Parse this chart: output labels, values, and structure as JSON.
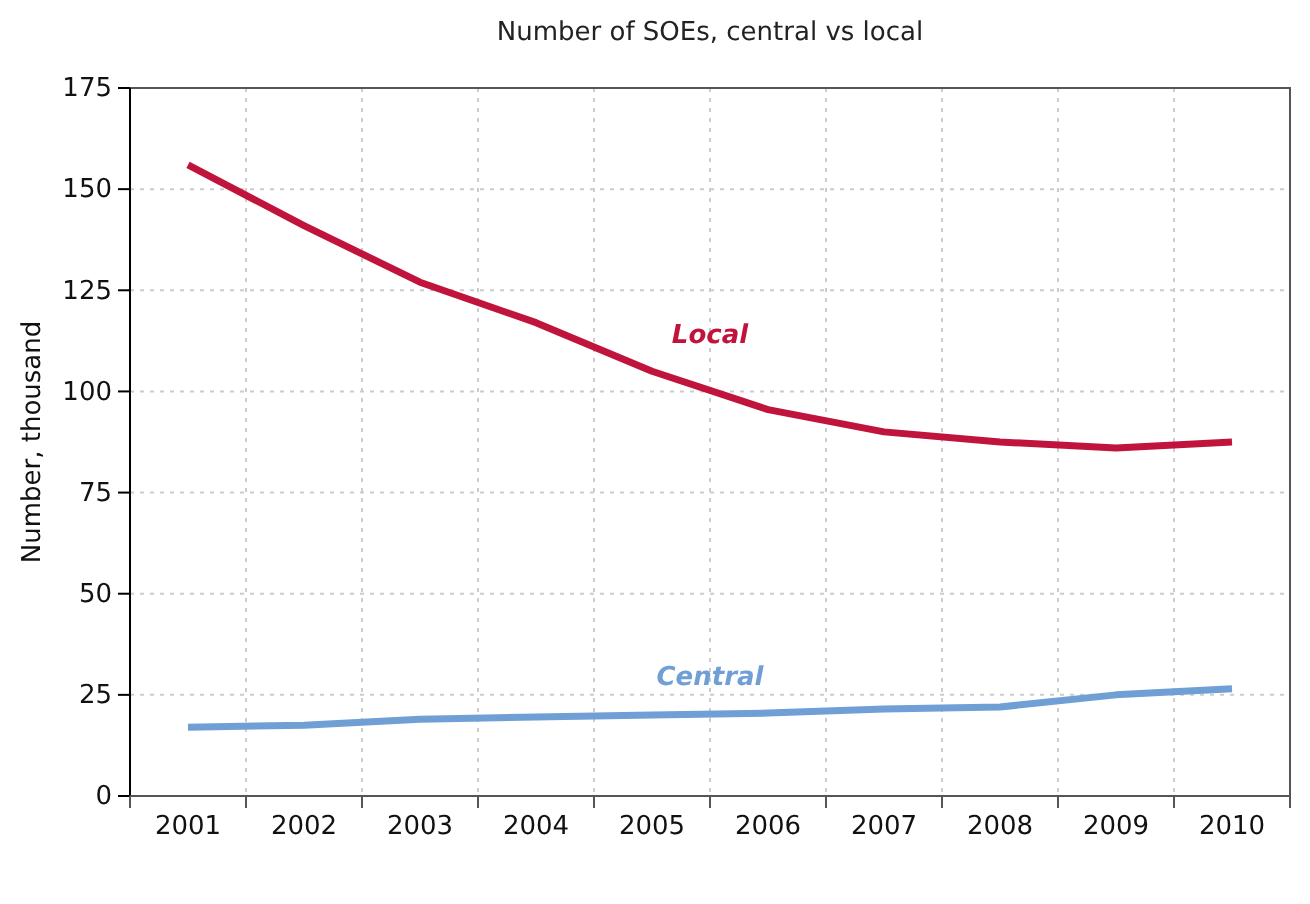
{
  "chart_data": {
    "type": "line",
    "title": "Number of SOEs, central vs local",
    "ylabel": "Number, thousand",
    "categories": [
      "2001",
      "2002",
      "2003",
      "2004",
      "2005",
      "2006",
      "2007",
      "2008",
      "2009",
      "2010"
    ],
    "series": [
      {
        "name": "Local",
        "color": "#c0143c",
        "values": [
          156,
          141,
          127,
          117,
          105,
          95.5,
          90,
          87.5,
          86,
          87.5
        ]
      },
      {
        "name": "Central",
        "color": "#6f9fd4",
        "values": [
          17,
          17.5,
          19,
          19.5,
          20,
          20.5,
          21.5,
          22,
          25,
          26.5
        ]
      }
    ],
    "ylim": [
      0,
      175
    ],
    "yticks": [
      0,
      25,
      50,
      75,
      100,
      125,
      150,
      175
    ],
    "grid": true,
    "legend": false
  }
}
